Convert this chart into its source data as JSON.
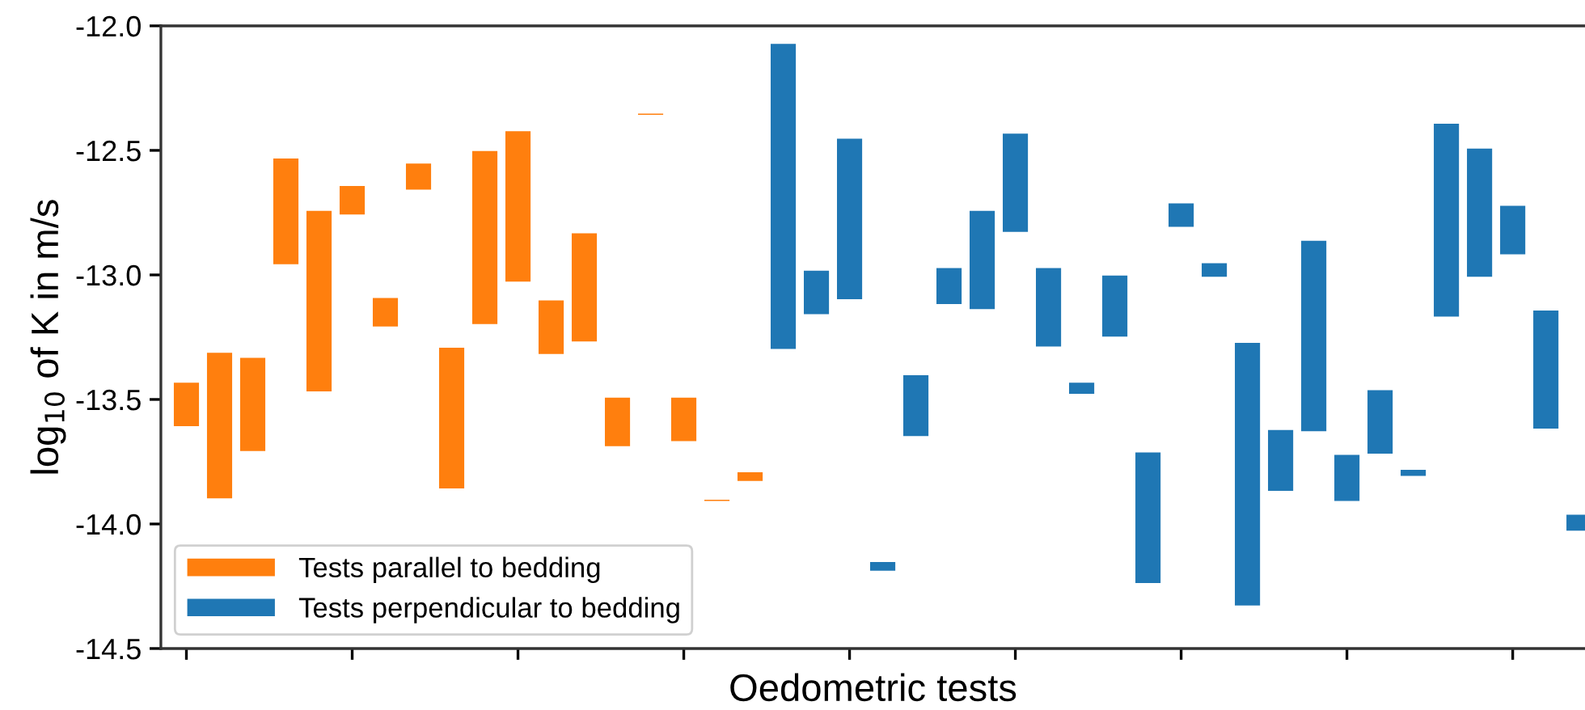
{
  "chart_data": {
    "type": "bar",
    "xlabel": "Oedometric tests",
    "ylabel": "log$_{10}$ of K in m/s",
    "categories": [
      null,
      null,
      null,
      null,
      null,
      null,
      null,
      null,
      null,
      null,
      null,
      null,
      null,
      null,
      null,
      null,
      null,
      null,
      null,
      null,
      null,
      null,
      null,
      null,
      null,
      null,
      null,
      null,
      null,
      null,
      null,
      null,
      null,
      null,
      null,
      null,
      null,
      null,
      null,
      null,
      null,
      null,
      null
    ],
    "series": [
      {
        "name": "Tests parallel to bedding",
        "color": "#ff7f0e",
        "base": [
          -13.61,
          -13.9,
          -13.71,
          -12.96,
          -13.47,
          -12.76,
          -13.21,
          -12.66,
          -13.86,
          -13.2,
          -13.03,
          -13.32,
          -13.27,
          -13.69,
          -12.36,
          -13.67,
          -13.91,
          -13.83,
          null,
          null,
          null,
          null,
          null,
          null,
          null,
          null,
          null,
          null,
          null,
          null,
          null,
          null,
          null,
          null,
          null,
          null,
          null,
          null,
          null,
          null,
          null,
          null,
          null
        ],
        "values": [
          0.18,
          0.59,
          0.38,
          0.43,
          0.73,
          0.12,
          0.12,
          0.11,
          0.57,
          0.7,
          0.61,
          0.22,
          0.44,
          0.2,
          0.01,
          0.18,
          0.01,
          0.04,
          null,
          null,
          null,
          null,
          null,
          null,
          null,
          null,
          null,
          null,
          null,
          null,
          null,
          null,
          null,
          null,
          null,
          null,
          null,
          null,
          null,
          null,
          null,
          null,
          null
        ]
      },
      {
        "name": "Tests perpendicular to bedding",
        "color": "#1f77b4",
        "base": [
          null,
          null,
          null,
          null,
          null,
          null,
          null,
          null,
          null,
          null,
          null,
          null,
          null,
          null,
          null,
          null,
          null,
          null,
          -13.3,
          -13.16,
          -13.1,
          -14.19,
          -13.65,
          -13.12,
          -13.14,
          -12.83,
          -13.29,
          -13.48,
          -13.25,
          -14.24,
          -12.81,
          -13.01,
          -14.33,
          -13.87,
          -13.63,
          -13.91,
          -13.72,
          -13.81,
          -13.17,
          -13.01,
          -12.92,
          -13.62,
          -14.03
        ],
        "values": [
          null,
          null,
          null,
          null,
          null,
          null,
          null,
          null,
          null,
          null,
          null,
          null,
          null,
          null,
          null,
          null,
          null,
          null,
          1.23,
          0.18,
          0.65,
          0.04,
          0.25,
          0.15,
          0.4,
          0.4,
          0.32,
          0.05,
          0.25,
          0.53,
          0.1,
          0.06,
          1.06,
          0.25,
          0.77,
          0.19,
          0.26,
          0.03,
          0.78,
          0.52,
          0.2,
          0.48,
          0.07
        ]
      }
    ],
    "ylim": [
      -14.5,
      -12.0
    ],
    "yticks": [
      {
        "value": -14.5,
        "label": "-14.5"
      },
      {
        "value": -14.0,
        "label": "-14.0"
      },
      {
        "value": -13.5,
        "label": "-13.5"
      },
      {
        "value": -13.0,
        "label": "-13.0"
      },
      {
        "value": -12.5,
        "label": "-12.5"
      },
      {
        "value": -12.0,
        "label": "-12.0"
      }
    ],
    "tick_labels": "y",
    "legend": "lower left",
    "grid": false
  }
}
